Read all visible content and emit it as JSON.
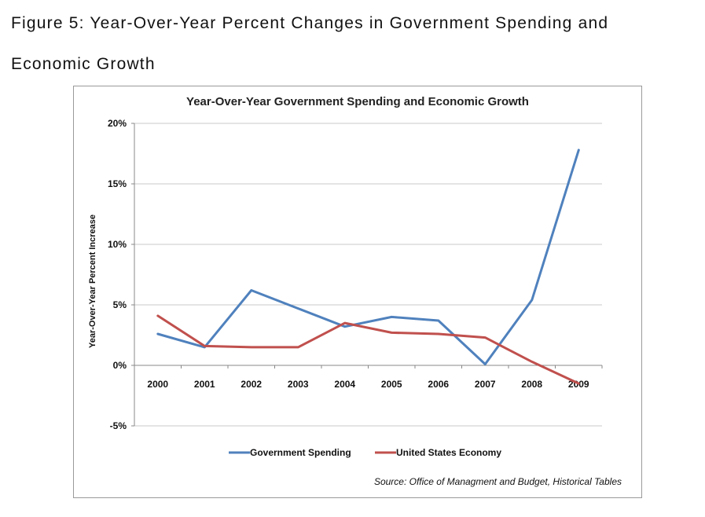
{
  "caption": "Figure 5: Year-Over-Year Percent Changes in Government Spending and Economic Growth",
  "chart_data": {
    "type": "line",
    "title": "Year-Over-Year Government Spending and Economic Growth",
    "xlabel": "",
    "ylabel": "Year-Over-Year Percent Increase",
    "categories": [
      "2000",
      "2001",
      "2002",
      "2003",
      "2004",
      "2005",
      "2006",
      "2007",
      "2008",
      "2009"
    ],
    "ylim": [
      -5,
      20
    ],
    "yticks": [
      20,
      15,
      10,
      5,
      0,
      -5
    ],
    "ytick_labels": [
      "20%",
      "15%",
      "10%",
      "5%",
      "0%",
      "-5%"
    ],
    "grid": true,
    "legend_position": "bottom",
    "series": [
      {
        "name": "Government Spending",
        "color": "#4F81BD",
        "values": [
          2.6,
          1.5,
          6.2,
          4.7,
          3.2,
          4.0,
          3.7,
          0.1,
          5.4,
          17.8
        ]
      },
      {
        "name": "United States Economy",
        "color": "#C0504D",
        "values": [
          4.1,
          1.6,
          1.5,
          1.5,
          3.5,
          2.7,
          2.6,
          2.3,
          0.3,
          -1.5
        ]
      }
    ],
    "source": "Source: Office of Managment and Budget, Historical Tables"
  }
}
